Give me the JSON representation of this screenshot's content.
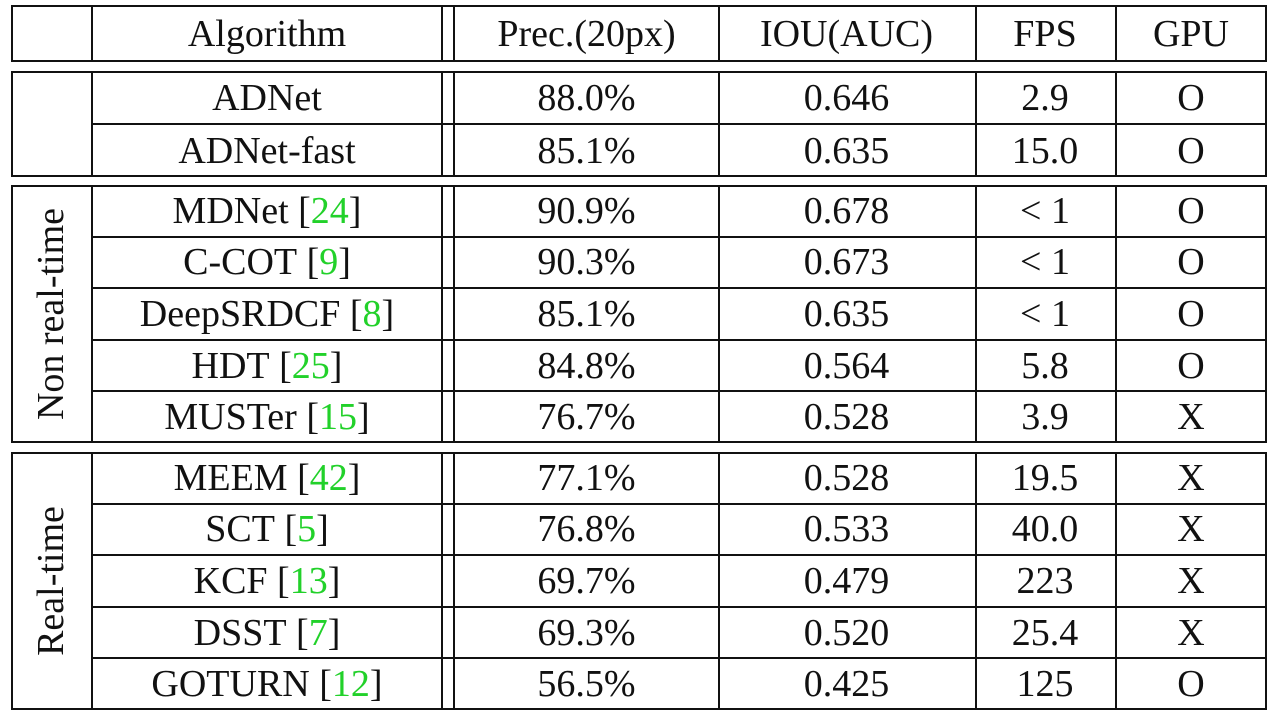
{
  "table": {
    "headers": {
      "group": "",
      "algorithm": "Algorithm",
      "precision": "Prec.(20px)",
      "iou": "IOU(AUC)",
      "fps": "FPS",
      "gpu": "GPU"
    },
    "ref_color": "#22d12a",
    "sections": [
      {
        "label": "",
        "rows": [
          {
            "name": "ADNet",
            "ref": "",
            "prec": "88.0%",
            "iou": "0.646",
            "fps": "2.9",
            "gpu": "O"
          },
          {
            "name": "ADNet-fast",
            "ref": "",
            "prec": "85.1%",
            "iou": "0.635",
            "fps": "15.0",
            "gpu": "O"
          }
        ]
      },
      {
        "label": "Non real-time",
        "rows": [
          {
            "name": "MDNet",
            "ref": "24",
            "prec": "90.9%",
            "iou": "0.678",
            "fps": "< 1",
            "gpu": "O"
          },
          {
            "name": "C-COT",
            "ref": "9",
            "prec": "90.3%",
            "iou": "0.673",
            "fps": "< 1",
            "gpu": "O"
          },
          {
            "name": "DeepSRDCF",
            "ref": "8",
            "prec": "85.1%",
            "iou": "0.635",
            "fps": "< 1",
            "gpu": "O"
          },
          {
            "name": "HDT",
            "ref": "25",
            "prec": "84.8%",
            "iou": "0.564",
            "fps": "5.8",
            "gpu": "O"
          },
          {
            "name": "MUSTer",
            "ref": "15",
            "prec": "76.7%",
            "iou": "0.528",
            "fps": "3.9",
            "gpu": "X"
          }
        ]
      },
      {
        "label": "Real-time",
        "rows": [
          {
            "name": "MEEM",
            "ref": "42",
            "prec": "77.1%",
            "iou": "0.528",
            "fps": "19.5",
            "gpu": "X"
          },
          {
            "name": "SCT",
            "ref": "5",
            "prec": "76.8%",
            "iou": "0.533",
            "fps": "40.0",
            "gpu": "X"
          },
          {
            "name": "KCF",
            "ref": "13",
            "prec": "69.7%",
            "iou": "0.479",
            "fps": "223",
            "gpu": "X"
          },
          {
            "name": "DSST",
            "ref": "7",
            "prec": "69.3%",
            "iou": "0.520",
            "fps": "25.4",
            "gpu": "X"
          },
          {
            "name": "GOTURN",
            "ref": "12",
            "prec": "56.5%",
            "iou": "0.425",
            "fps": "125",
            "gpu": "O"
          }
        ]
      }
    ]
  }
}
